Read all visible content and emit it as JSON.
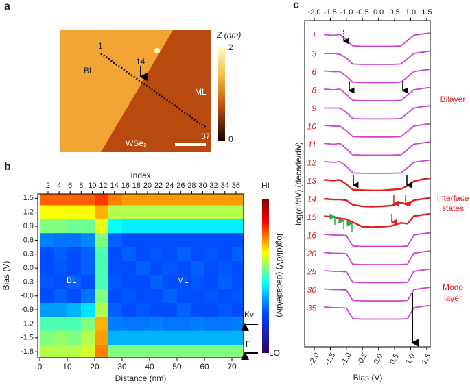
{
  "panel_a": {
    "label": "a",
    "zlabel": "Z (nm)",
    "colorbar_ticks": [
      2,
      0
    ],
    "regions": [
      "BL",
      "ML",
      "WSe₂"
    ],
    "points": [
      "1",
      "14",
      "37"
    ]
  },
  "chart_data": [
    {
      "type": "heatmap",
      "label": "b",
      "xlabel": "Distance (nm)",
      "ylabel": "Bias (V)",
      "x2label": "Index",
      "x": [
        2.5,
        7.5,
        12.5,
        17.5,
        22.5,
        27.5,
        32.5,
        37.5,
        42.5,
        47.5,
        52.5,
        57.5,
        62.5,
        67.5,
        72.5
      ],
      "y": [
        1.5,
        1.2,
        0.9,
        0.6,
        0.3,
        0,
        -0.3,
        -0.6,
        -0.9,
        -1.2,
        -1.5,
        -1.8
      ],
      "z": [
        [
          0.78,
          0.78,
          0.78,
          0.78,
          0.82,
          0.75,
          0.72,
          0.72,
          0.72,
          0.72,
          0.72,
          0.72,
          0.72,
          0.72,
          0.72
        ],
        [
          0.62,
          0.62,
          0.62,
          0.62,
          0.7,
          0.55,
          0.55,
          0.55,
          0.55,
          0.55,
          0.55,
          0.55,
          0.55,
          0.55,
          0.55
        ],
        [
          0.5,
          0.5,
          0.48,
          0.48,
          0.6,
          0.38,
          0.36,
          0.36,
          0.36,
          0.36,
          0.36,
          0.36,
          0.36,
          0.36,
          0.36
        ],
        [
          0.25,
          0.24,
          0.24,
          0.26,
          0.5,
          0.22,
          0.2,
          0.2,
          0.2,
          0.2,
          0.2,
          0.2,
          0.2,
          0.2,
          0.2
        ],
        [
          0.2,
          0.22,
          0.2,
          0.22,
          0.45,
          0.2,
          0.22,
          0.2,
          0.21,
          0.2,
          0.22,
          0.2,
          0.21,
          0.2,
          0.22
        ],
        [
          0.2,
          0.21,
          0.2,
          0.22,
          0.45,
          0.2,
          0.2,
          0.22,
          0.2,
          0.21,
          0.2,
          0.22,
          0.2,
          0.21,
          0.2
        ],
        [
          0.21,
          0.2,
          0.22,
          0.2,
          0.45,
          0.21,
          0.2,
          0.2,
          0.22,
          0.2,
          0.2,
          0.21,
          0.2,
          0.22,
          0.2
        ],
        [
          0.2,
          0.22,
          0.2,
          0.24,
          0.5,
          0.2,
          0.21,
          0.2,
          0.2,
          0.22,
          0.2,
          0.2,
          0.21,
          0.2,
          0.21
        ],
        [
          0.28,
          0.28,
          0.3,
          0.35,
          0.55,
          0.22,
          0.2,
          0.21,
          0.2,
          0.2,
          0.22,
          0.2,
          0.2,
          0.21,
          0.2
        ],
        [
          0.45,
          0.45,
          0.45,
          0.5,
          0.7,
          0.25,
          0.24,
          0.24,
          0.25,
          0.24,
          0.24,
          0.25,
          0.24,
          0.24,
          0.25
        ],
        [
          0.5,
          0.52,
          0.5,
          0.55,
          0.72,
          0.3,
          0.3,
          0.3,
          0.3,
          0.3,
          0.3,
          0.3,
          0.3,
          0.3,
          0.3
        ],
        [
          0.55,
          0.55,
          0.55,
          0.58,
          0.75,
          0.5,
          0.5,
          0.5,
          0.5,
          0.5,
          0.5,
          0.5,
          0.5,
          0.5,
          0.5
        ]
      ],
      "zlim": [
        0,
        1
      ],
      "xlim": [
        -0.75,
        74.25
      ],
      "xticks": [
        0,
        10,
        20,
        30,
        40,
        50,
        60,
        70
      ],
      "x2lim": [
        0.138,
        37.38
      ],
      "x2ticks": [
        2,
        4,
        6,
        8,
        10,
        12,
        14,
        16,
        18,
        20,
        22,
        24,
        26,
        28,
        30,
        32,
        34,
        36
      ],
      "ylim": [
        -1.93,
        1.5935
      ],
      "yticks": [
        1.5,
        1.2,
        0.9,
        0.6,
        0.3,
        {
          "value": 0,
          "label": "0.0"
        },
        -0.3,
        -0.6,
        -0.9,
        -1.2,
        -1.5,
        -1.8
      ],
      "colorbar": {
        "high": "HI",
        "low": "LO",
        "label": "log(dI/dV) (decade/div)"
      },
      "annotations": [
        "BL",
        "ML",
        "Kv",
        "Γ"
      ]
    },
    {
      "type": "line",
      "label": "c",
      "xlabel": "Bias (V)",
      "ylabel": "log(dI/dV) (decade/div)",
      "x": [
        -1.7,
        -1.4,
        -1.2,
        -1.0,
        -0.8,
        -0.5,
        -0.2,
        0.1,
        0.4,
        0.7,
        0.9,
        1.1,
        1.4,
        1.6
      ],
      "xlim": [
        -2.3,
        1.61
      ],
      "xticks": [
        {
          "value": -2,
          "label": "-2.0"
        },
        -1.5,
        {
          "value": -1,
          "label": "-1.0"
        },
        -0.5,
        {
          "value": 0,
          "label": "0.0"
        },
        0.5,
        {
          "value": 1,
          "label": "1.0"
        },
        1.5
      ],
      "region_labels": [
        [
          "Bilayer"
        ],
        [
          "Interface",
          "states"
        ],
        [
          "Mono",
          "layer"
        ]
      ],
      "series": [
        {
          "name": "1",
          "color": "#cc44cc",
          "values": [
            1.6,
            1.5,
            1.6,
            0.9,
            0.1,
            0.05,
            0.05,
            0.05,
            0.05,
            0.1,
            0.8,
            1.5,
            1.7,
            1.8
          ]
        },
        {
          "name": "3",
          "color": "#cc44cc",
          "values": [
            1.5,
            1.5,
            1.4,
            0.9,
            0.1,
            0.05,
            0.05,
            0.05,
            0.05,
            0.1,
            0.8,
            1.5,
            1.7,
            1.8
          ]
        },
        {
          "name": "6",
          "color": "#cc44cc",
          "values": [
            1.6,
            1.5,
            1.5,
            0.9,
            0.1,
            0.05,
            0.05,
            0.05,
            0.05,
            0.1,
            0.8,
            1.5,
            1.7,
            1.8
          ]
        },
        {
          "name": "8",
          "color": "#cc44cc",
          "values": [
            1.6,
            1.5,
            1.6,
            0.9,
            0.1,
            0.05,
            0.05,
            0.05,
            0.05,
            0.1,
            0.8,
            1.5,
            1.7,
            1.8
          ]
        },
        {
          "name": "9",
          "color": "#cc44cc",
          "values": [
            1.5,
            1.5,
            1.5,
            0.9,
            0.1,
            0.05,
            0.05,
            0.05,
            0.05,
            0.1,
            0.8,
            1.5,
            1.7,
            1.8
          ]
        },
        {
          "name": "10",
          "color": "#cc44cc",
          "values": [
            1.6,
            1.5,
            1.5,
            0.9,
            0.1,
            0.05,
            0.05,
            0.05,
            0.05,
            0.1,
            0.8,
            1.5,
            1.7,
            1.8
          ]
        },
        {
          "name": "11",
          "color": "#cc44cc",
          "values": [
            1.6,
            1.5,
            1.6,
            0.9,
            0.1,
            0.05,
            0.05,
            0.05,
            0.05,
            0.1,
            0.8,
            1.5,
            1.7,
            1.8
          ]
        },
        {
          "name": "12",
          "color": "#cc44cc",
          "values": [
            1.6,
            1.5,
            1.6,
            1.0,
            0.1,
            0.05,
            0.05,
            0.05,
            0.05,
            0.1,
            0.8,
            1.5,
            1.7,
            1.8
          ]
        },
        {
          "name": "13",
          "color": "#e0201e",
          "values": [
            1.6,
            1.5,
            1.6,
            1.0,
            0.3,
            0.25,
            0.2,
            0.2,
            0.3,
            0.4,
            0.8,
            1.4,
            1.7,
            1.8
          ]
        },
        {
          "name": "14",
          "color": "#e0201e",
          "values": [
            1.5,
            1.4,
            1.4,
            1.3,
            0.7,
            0.5,
            0.45,
            0.5,
            0.6,
            1.0,
            0.7,
            1.3,
            1.5,
            1.6
          ]
        },
        {
          "name": "15",
          "color": "#e0201e",
          "values": [
            1.6,
            1.5,
            1.3,
            1.2,
            0.8,
            0.2,
            0.15,
            0.2,
            0.3,
            0.7,
            0.6,
            1.6,
            1.8,
            1.9
          ]
        },
        {
          "name": "16",
          "color": "#cc44cc",
          "values": [
            1.6,
            1.5,
            1.5,
            1.45,
            0.05,
            0,
            0,
            0,
            0,
            0,
            0.05,
            1.5,
            1.7,
            1.8
          ]
        },
        {
          "name": "20",
          "color": "#cc44cc",
          "values": [
            1.6,
            1.5,
            1.5,
            1.45,
            0.05,
            0,
            0,
            0,
            0,
            0,
            0.05,
            1.5,
            1.7,
            1.8
          ]
        },
        {
          "name": "25",
          "color": "#cc44cc",
          "values": [
            1.6,
            1.5,
            1.5,
            1.45,
            0.05,
            0,
            0,
            0,
            0,
            0,
            0.05,
            1.5,
            1.7,
            1.8
          ]
        },
        {
          "name": "30",
          "color": "#cc44cc",
          "values": [
            1.6,
            1.5,
            1.5,
            1.45,
            0.05,
            0,
            0,
            0,
            0,
            0,
            0.05,
            1.5,
            1.7,
            1.8
          ]
        },
        {
          "name": "35",
          "color": "#cc44cc",
          "values": [
            1.6,
            1.5,
            1.5,
            1.45,
            0.05,
            0,
            0,
            0,
            0,
            0,
            0.05,
            1.5,
            1.7,
            1.8
          ]
        }
      ]
    }
  ]
}
